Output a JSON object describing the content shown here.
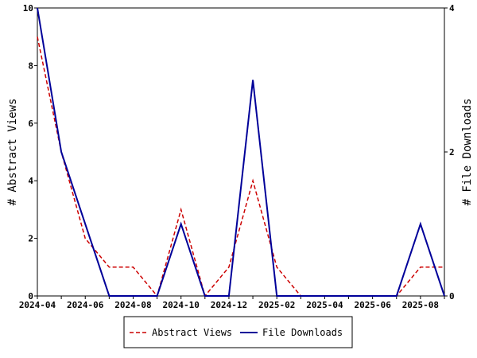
{
  "chart_data": {
    "type": "line",
    "x": [
      "2024-04",
      "2024-05",
      "2024-06",
      "2024-07",
      "2024-08",
      "2024-09",
      "2024-10",
      "2024-11",
      "2024-12",
      "2025-01",
      "2025-02",
      "2025-03",
      "2025-04",
      "2025-05",
      "2025-06",
      "2025-07",
      "2025-08",
      "2025-09"
    ],
    "x_tick_labels": [
      "2024-04",
      "2024-06",
      "2024-08",
      "2024-10",
      "2024-12",
      "2025-02",
      "2025-04",
      "2025-06",
      "2025-08"
    ],
    "ylabel": "# Abstract Views",
    "y2label": "# File Downloads",
    "ylim": [
      0,
      10
    ],
    "y2lim": [
      0,
      4
    ],
    "y_ticks": [
      "0",
      "2",
      "4",
      "6",
      "8",
      "10"
    ],
    "y2_ticks": [
      "0",
      "2",
      "4"
    ],
    "series": [
      {
        "name": "Abstract Views",
        "axis": "left",
        "color": "#cc0000",
        "style": "dashed",
        "values": [
          9,
          5,
          2,
          1,
          1,
          0,
          3,
          0,
          1,
          4,
          1,
          0,
          0,
          0,
          0,
          0,
          1,
          1
        ]
      },
      {
        "name": "File Downloads",
        "axis": "right",
        "color": "#000099",
        "style": "solid",
        "values": [
          4,
          2,
          1,
          0,
          0,
          0,
          1,
          0,
          0,
          3,
          0,
          0,
          0,
          0,
          0,
          0,
          1,
          0
        ]
      }
    ],
    "grid": false,
    "legend_position": "bottom"
  }
}
